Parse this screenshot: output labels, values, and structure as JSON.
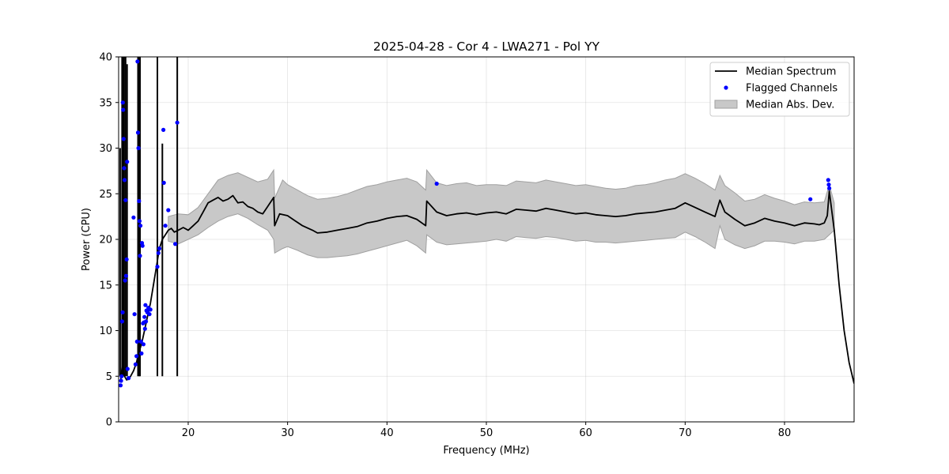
{
  "chart_data": {
    "type": "line",
    "title": "2025-04-28 - Cor 4 - LWA271 - Pol YY",
    "xlabel": "Frequency (MHz)",
    "ylabel": "Power (CPU)",
    "xlim": [
      13,
      87
    ],
    "ylim": [
      0,
      40
    ],
    "xticks": [
      20,
      30,
      40,
      50,
      60,
      70,
      80
    ],
    "yticks": [
      0,
      5,
      10,
      15,
      20,
      25,
      30,
      35,
      40
    ],
    "grid": true,
    "legend_position": "top-right",
    "colors": {
      "median": "#000000",
      "flagged": "#0000ff",
      "mad_fill": "#c8c8c8",
      "mad_edge": "#a0a0a0"
    },
    "legend": [
      {
        "label": "Median Spectrum",
        "kind": "line"
      },
      {
        "label": "Flagged Channels",
        "kind": "marker"
      },
      {
        "label": "Median Abs. Dev.",
        "kind": "patch"
      }
    ],
    "series": [
      {
        "name": "Median Spectrum",
        "x": [
          13.2,
          13.4,
          13.6,
          13.8,
          14.0,
          14.2,
          14.5,
          14.8,
          15.0,
          15.3,
          15.6,
          15.9,
          16.2,
          16.5,
          16.8,
          17.1,
          17.4,
          17.7,
          18.0,
          18.3,
          18.6,
          19.0,
          19.5,
          20.0,
          20.5,
          21.0,
          21.5,
          22.0,
          22.5,
          23.0,
          23.5,
          24.0,
          24.5,
          25.0,
          25.5,
          26.0,
          26.5,
          27.0,
          27.5,
          28.0,
          28.6,
          28.7,
          29.2,
          30.0,
          30.8,
          31.5,
          32.5,
          33.0,
          34.0,
          35.0,
          36.0,
          37.0,
          38.0,
          39.0,
          40.0,
          41.0,
          42.0,
          43.0,
          43.9,
          44.0,
          45.0,
          46.0,
          47.0,
          48.0,
          49.0,
          50.0,
          51.0,
          52.0,
          53.0,
          54.0,
          55.0,
          56.0,
          57.0,
          58.0,
          59.0,
          60.0,
          61.0,
          62.0,
          63.0,
          64.0,
          65.0,
          66.0,
          67.0,
          68.0,
          69.0,
          70.0,
          71.0,
          72.0,
          73.0,
          73.5,
          74.0,
          75.0,
          76.0,
          77.0,
          78.0,
          79.0,
          80.0,
          81.0,
          82.0,
          83.0,
          83.5,
          84.0,
          84.3,
          84.5,
          85.0,
          85.5,
          86.0,
          86.5,
          87.0
        ],
        "y": [
          4.5,
          6.5,
          5.0,
          4.6,
          4.7,
          5.0,
          5.6,
          6.5,
          7.5,
          8.5,
          10.0,
          11.5,
          13.0,
          15.0,
          17.0,
          19.0,
          20.0,
          20.5,
          21.0,
          21.2,
          20.8,
          21.0,
          21.3,
          21.0,
          21.5,
          22.0,
          23.0,
          24.0,
          24.3,
          24.6,
          24.2,
          24.4,
          24.8,
          24.0,
          24.1,
          23.6,
          23.4,
          23.0,
          22.8,
          23.6,
          24.6,
          21.5,
          22.8,
          22.6,
          22.0,
          21.5,
          21.0,
          20.7,
          20.8,
          21.0,
          21.2,
          21.4,
          21.8,
          22.0,
          22.3,
          22.5,
          22.6,
          22.2,
          21.5,
          24.2,
          23.0,
          22.6,
          22.8,
          22.9,
          22.7,
          22.9,
          23.0,
          22.8,
          23.3,
          23.2,
          23.1,
          23.4,
          23.2,
          23.0,
          22.8,
          22.9,
          22.7,
          22.6,
          22.5,
          22.6,
          22.8,
          22.9,
          23.0,
          23.2,
          23.4,
          24.0,
          23.5,
          23.0,
          22.5,
          24.3,
          23.0,
          22.2,
          21.5,
          21.8,
          22.3,
          22.0,
          21.8,
          21.5,
          21.8,
          21.7,
          21.6,
          21.8,
          22.6,
          25.3,
          21.0,
          15.0,
          10.0,
          6.5,
          4.2
        ]
      },
      {
        "name": "Median Abs. Dev.",
        "x": [
          18.0,
          19.0,
          20.0,
          21.0,
          22.0,
          23.0,
          24.0,
          25.0,
          26.0,
          27.0,
          28.0,
          28.6,
          28.7,
          29.5,
          30.0,
          31.0,
          32.0,
          33.0,
          34.0,
          35.0,
          36.0,
          37.0,
          38.0,
          39.0,
          40.0,
          41.0,
          42.0,
          43.0,
          43.9,
          44.0,
          45.0,
          46.0,
          47.0,
          48.0,
          49.0,
          50.0,
          51.0,
          52.0,
          53.0,
          54.0,
          55.0,
          56.0,
          57.0,
          58.0,
          59.0,
          60.0,
          61.0,
          62.0,
          63.0,
          64.0,
          65.0,
          66.0,
          67.0,
          68.0,
          69.0,
          70.0,
          71.0,
          72.0,
          73.0,
          73.5,
          74.0,
          75.0,
          76.0,
          77.0,
          78.0,
          79.0,
          80.0,
          81.0,
          82.0,
          83.0,
          84.0,
          84.5,
          85.0
        ],
        "lower": [
          19.8,
          19.5,
          20.0,
          20.5,
          21.3,
          22.0,
          22.5,
          22.8,
          22.3,
          21.6,
          21.0,
          20.0,
          18.5,
          19.0,
          19.2,
          18.8,
          18.3,
          18.0,
          18.0,
          18.1,
          18.2,
          18.4,
          18.7,
          19.0,
          19.3,
          19.6,
          19.9,
          19.3,
          18.5,
          20.5,
          19.7,
          19.4,
          19.5,
          19.6,
          19.7,
          19.8,
          20.0,
          19.8,
          20.3,
          20.2,
          20.1,
          20.3,
          20.2,
          20.0,
          19.8,
          19.9,
          19.7,
          19.7,
          19.6,
          19.7,
          19.8,
          19.9,
          20.0,
          20.1,
          20.2,
          20.8,
          20.3,
          19.7,
          19.0,
          21.5,
          20.0,
          19.4,
          19.0,
          19.3,
          19.8,
          19.8,
          19.7,
          19.5,
          19.8,
          19.8,
          20.0,
          20.5,
          21.0
        ],
        "upper": [
          22.5,
          22.8,
          22.7,
          23.5,
          25.0,
          26.5,
          27.0,
          27.3,
          26.8,
          26.3,
          26.6,
          27.6,
          24.5,
          26.5,
          26.0,
          25.4,
          24.8,
          24.4,
          24.5,
          24.7,
          25.0,
          25.4,
          25.8,
          26.0,
          26.3,
          26.5,
          26.7,
          26.3,
          25.4,
          27.6,
          26.2,
          25.9,
          26.1,
          26.2,
          25.9,
          26.0,
          26.0,
          25.9,
          26.4,
          26.3,
          26.2,
          26.5,
          26.3,
          26.1,
          25.9,
          26.0,
          25.8,
          25.6,
          25.5,
          25.6,
          25.9,
          26.0,
          26.2,
          26.5,
          26.7,
          27.2,
          26.7,
          26.1,
          25.4,
          27.0,
          25.9,
          25.1,
          24.2,
          24.4,
          24.9,
          24.5,
          24.2,
          23.8,
          24.1,
          24.0,
          24.1,
          26.0,
          24.0
        ]
      },
      {
        "name": "Flagged Channels",
        "x": [
          13.2,
          13.25,
          13.3,
          13.35,
          13.4,
          13.42,
          13.45,
          13.5,
          13.55,
          13.6,
          13.65,
          13.7,
          13.75,
          13.8,
          13.85,
          13.9,
          14.0,
          14.5,
          14.6,
          14.7,
          14.8,
          14.85,
          14.9,
          14.95,
          15.0,
          15.05,
          15.1,
          15.15,
          15.2,
          15.25,
          15.3,
          15.35,
          15.4,
          15.45,
          15.5,
          15.55,
          15.6,
          15.65,
          15.7,
          15.75,
          15.8,
          15.9,
          16.0,
          16.1,
          16.2,
          16.9,
          17.0,
          17.1,
          17.5,
          17.55,
          17.7,
          18.0,
          18.7,
          18.9,
          45.0,
          82.6,
          84.4,
          84.45,
          84.5
        ],
        "y": [
          4.0,
          4.5,
          5.0,
          11.0,
          12.0,
          35.0,
          34.2,
          31.0,
          27.8,
          26.5,
          15.5,
          24.3,
          16.0,
          17.8,
          28.5,
          5.8,
          4.8,
          22.4,
          11.8,
          6.3,
          7.2,
          8.8,
          39.5,
          31.7,
          30.0,
          24.2,
          22.0,
          18.2,
          21.5,
          8.8,
          7.5,
          19.6,
          19.3,
          10.8,
          8.5,
          10.9,
          11.5,
          10.2,
          12.8,
          11.0,
          12.2,
          12.0,
          12.5,
          11.8,
          12.3,
          17.0,
          18.5,
          19.0,
          32.0,
          26.2,
          21.5,
          23.2,
          19.5,
          32.8,
          26.1,
          24.4,
          26.5,
          26.0,
          25.6
        ]
      }
    ],
    "spikes": [
      {
        "x": 13.15,
        "peak": 30.0
      },
      {
        "x": 13.35,
        "peak": 40.0
      },
      {
        "x": 13.45,
        "peak": 40.0
      },
      {
        "x": 13.55,
        "peak": 40.0
      },
      {
        "x": 13.7,
        "peak": 40.0
      },
      {
        "x": 13.85,
        "peak": 39.2
      },
      {
        "x": 14.95,
        "peak": 40.0
      },
      {
        "x": 15.05,
        "peak": 40.0
      },
      {
        "x": 15.15,
        "peak": 40.0
      },
      {
        "x": 16.9,
        "peak": 40.0
      },
      {
        "x": 17.4,
        "peak": 30.5
      },
      {
        "x": 18.9,
        "peak": 40.0
      }
    ]
  }
}
